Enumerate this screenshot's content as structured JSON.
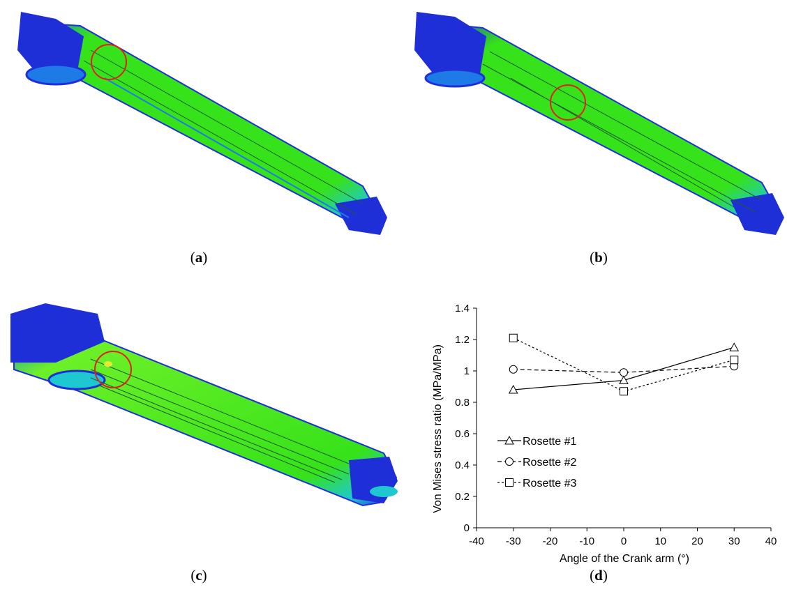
{
  "captions": {
    "a": {
      "open": "(",
      "letter": "a",
      "close": ")"
    },
    "b": {
      "open": "(",
      "letter": "b",
      "close": ")"
    },
    "c": {
      "open": "(",
      "letter": "c",
      "close": ")"
    },
    "d": {
      "open": "(",
      "letter": "d",
      "close": ")"
    }
  },
  "colors": {
    "deep_blue": "#1f2fd8",
    "mid_blue": "#1e7ae6",
    "cyan": "#1fc8d0",
    "green": "#36e21a",
    "light_green": "#6cf028",
    "yellow": "#e8e830",
    "highlight_circle": "#e02020"
  },
  "chart_data": {
    "type": "line",
    "xlabel": "Angle of the Crank arm (°)",
    "ylabel": "Von Mises stress ratio (MPa/MPa)",
    "xlim": [
      -40,
      40
    ],
    "ylim": [
      0,
      1.4
    ],
    "x_ticks": [
      "-40",
      "-30",
      "-20",
      "-10",
      "0",
      "10",
      "20",
      "30",
      "40"
    ],
    "y_ticks": [
      "0",
      "0.2",
      "0.4",
      "0.6",
      "0.8",
      "1",
      "1.2",
      "1.4"
    ],
    "grid": false,
    "legend_position": "left-middle",
    "series": [
      {
        "name": "Rosette #1",
        "marker": "triangle",
        "line": "solid",
        "x": [
          -30,
          0,
          30
        ],
        "y": [
          0.88,
          0.94,
          1.15
        ]
      },
      {
        "name": "Rosette #2",
        "marker": "circle",
        "line": "dashed",
        "x": [
          -30,
          0,
          30
        ],
        "y": [
          1.01,
          0.99,
          1.03
        ]
      },
      {
        "name": "Rosette #3",
        "marker": "square",
        "line": "dotted",
        "x": [
          -30,
          0,
          30
        ],
        "y": [
          1.21,
          0.87,
          1.07
        ]
      }
    ]
  }
}
